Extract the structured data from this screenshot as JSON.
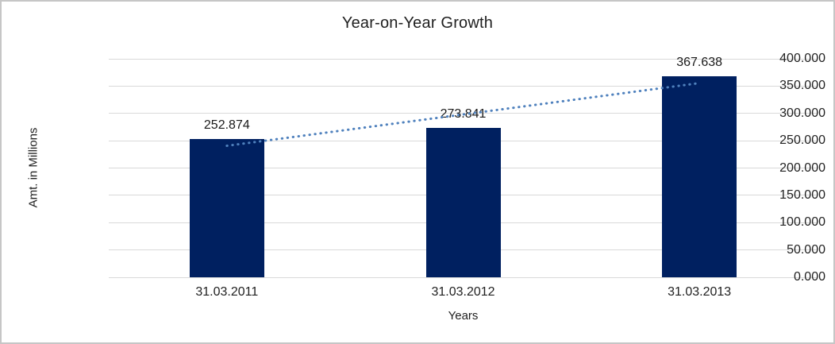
{
  "chart_data": {
    "type": "bar",
    "title": "Year-on-Year Growth",
    "categories": [
      "31.03.2011",
      "31.03.2012",
      "31.03.2013"
    ],
    "values": [
      252.874,
      273.841,
      367.638
    ],
    "value_labels": [
      "252.874",
      "273.841",
      "367.638"
    ],
    "xlabel": "Years",
    "ylabel": "Amt. in Millions",
    "ylim": [
      0,
      400
    ],
    "ytick_labels": [
      "0.000",
      "50.000",
      "100.000",
      "150.000",
      "200.000",
      "250.000",
      "300.000",
      "350.000",
      "400.000"
    ],
    "grid": true,
    "legend": "none",
    "trendline": {
      "type": "linear",
      "style": "dotted",
      "endpoints": [
        240.71,
        355.49
      ]
    },
    "colors": {
      "bar": "#002060",
      "gridline": "#d9d9d9",
      "trendline": "#4f81bd",
      "text": "#1f1f1f",
      "frame_border": "#c6c6c6",
      "background": "#ffffff"
    }
  }
}
